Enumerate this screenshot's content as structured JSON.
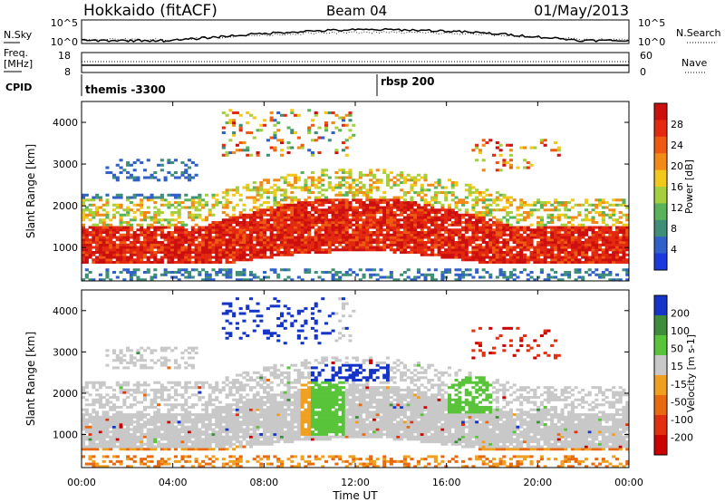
{
  "header": {
    "station": "Hokkaido (fitACF)",
    "beam": "Beam 04",
    "date": "01/May/2013"
  },
  "noise_panel": {
    "left_label": "N.Sky",
    "right_label": "N.Search",
    "left_ticks": [
      "10^5",
      "10^0"
    ],
    "right_ticks": [
      "10^5",
      "10^0"
    ]
  },
  "freq_panel": {
    "left_label_1": "Freq.",
    "left_label_2": "[MHz]",
    "right_label": "Nave",
    "left_ticks": [
      "18",
      "8"
    ],
    "right_ticks": [
      "60",
      "0"
    ]
  },
  "cpid": {
    "label": "CPID",
    "segments": [
      "themis -3300",
      "rbsp 200"
    ]
  },
  "x_axis": {
    "label": "Time UT",
    "ticks": [
      "00:00",
      "04:00",
      "08:00",
      "12:00",
      "16:00",
      "20:00",
      "00:00"
    ]
  },
  "chart_data": [
    {
      "type": "heatmap",
      "name": "power",
      "ylabel": "Slant Range [km]",
      "ylim": [
        200,
        4500
      ],
      "yticks": [
        "1000",
        "2000",
        "3000",
        "4000"
      ],
      "colorbar_label": "Power [dB]",
      "colorbar_ticks": [
        "4",
        "8",
        "12",
        "16",
        "20",
        "24",
        "28"
      ],
      "colors": [
        "#1a3adf",
        "#3060c8",
        "#3f8f78",
        "#5ab35a",
        "#a6cf3e",
        "#f2c81a",
        "#f28a16",
        "#ef5a12",
        "#e32a10",
        "#cc0f0f"
      ],
      "ranges_note": "echo bands: strong 700-1500 km through the day; patchy 1500-2600 km; far-range clusters 3000-4200 km"
    },
    {
      "type": "heatmap",
      "name": "velocity",
      "ylabel": "Slant Range [km]",
      "ylim": [
        200,
        4500
      ],
      "yticks": [
        "1000",
        "2000",
        "3000",
        "4000"
      ],
      "colorbar_label": "Velocity [m s-1]",
      "colorbar_ticks": [
        "200",
        "100",
        "50",
        "15",
        "-15",
        "-50",
        "-100",
        "-200"
      ],
      "colors": [
        "#1535c8",
        "#3f8d3a",
        "#59c43a",
        "#c8c8c8",
        "#f0a020",
        "#e86a10",
        "#e03010",
        "#cc0000"
      ]
    }
  ]
}
